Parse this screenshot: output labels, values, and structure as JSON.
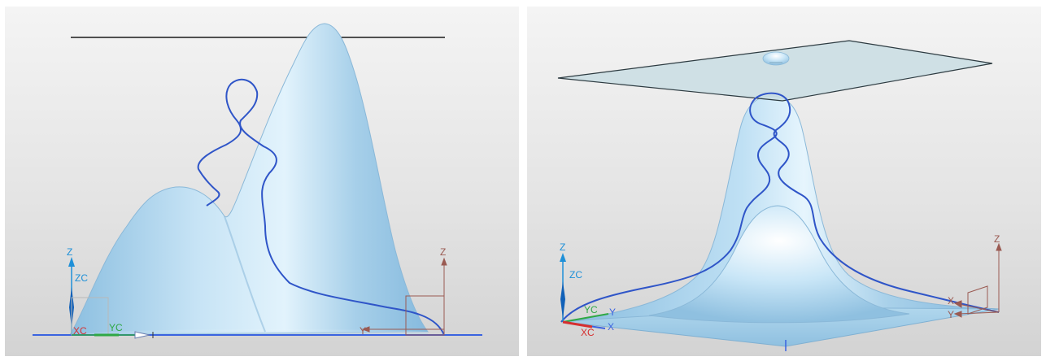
{
  "colors": {
    "surface": "#a9d1ea",
    "surface_highlight": "#d8eefa",
    "surface_shadow": "#7fb3d6",
    "curve": "#2f55c8",
    "plane": "#c9dde3",
    "axis_z": "#1e90d8",
    "axis_x": "#d63030",
    "axis_y": "#2fa845",
    "triad": "#9a5a52",
    "groundline": "#3a63e0"
  },
  "viewports": [
    {
      "name": "front-view",
      "labels": {
        "zc": "ZC",
        "z": "Z",
        "xc": "XC",
        "yc": "YC",
        "y": "Y",
        "z2": "Z"
      }
    },
    {
      "name": "iso-view",
      "labels": {
        "zc": "ZC",
        "z": "Z",
        "xc": "XC",
        "yc": "YC",
        "y": "Y",
        "x": "X",
        "x2": "X",
        "y2": "Y",
        "z2": "Z"
      }
    }
  ]
}
